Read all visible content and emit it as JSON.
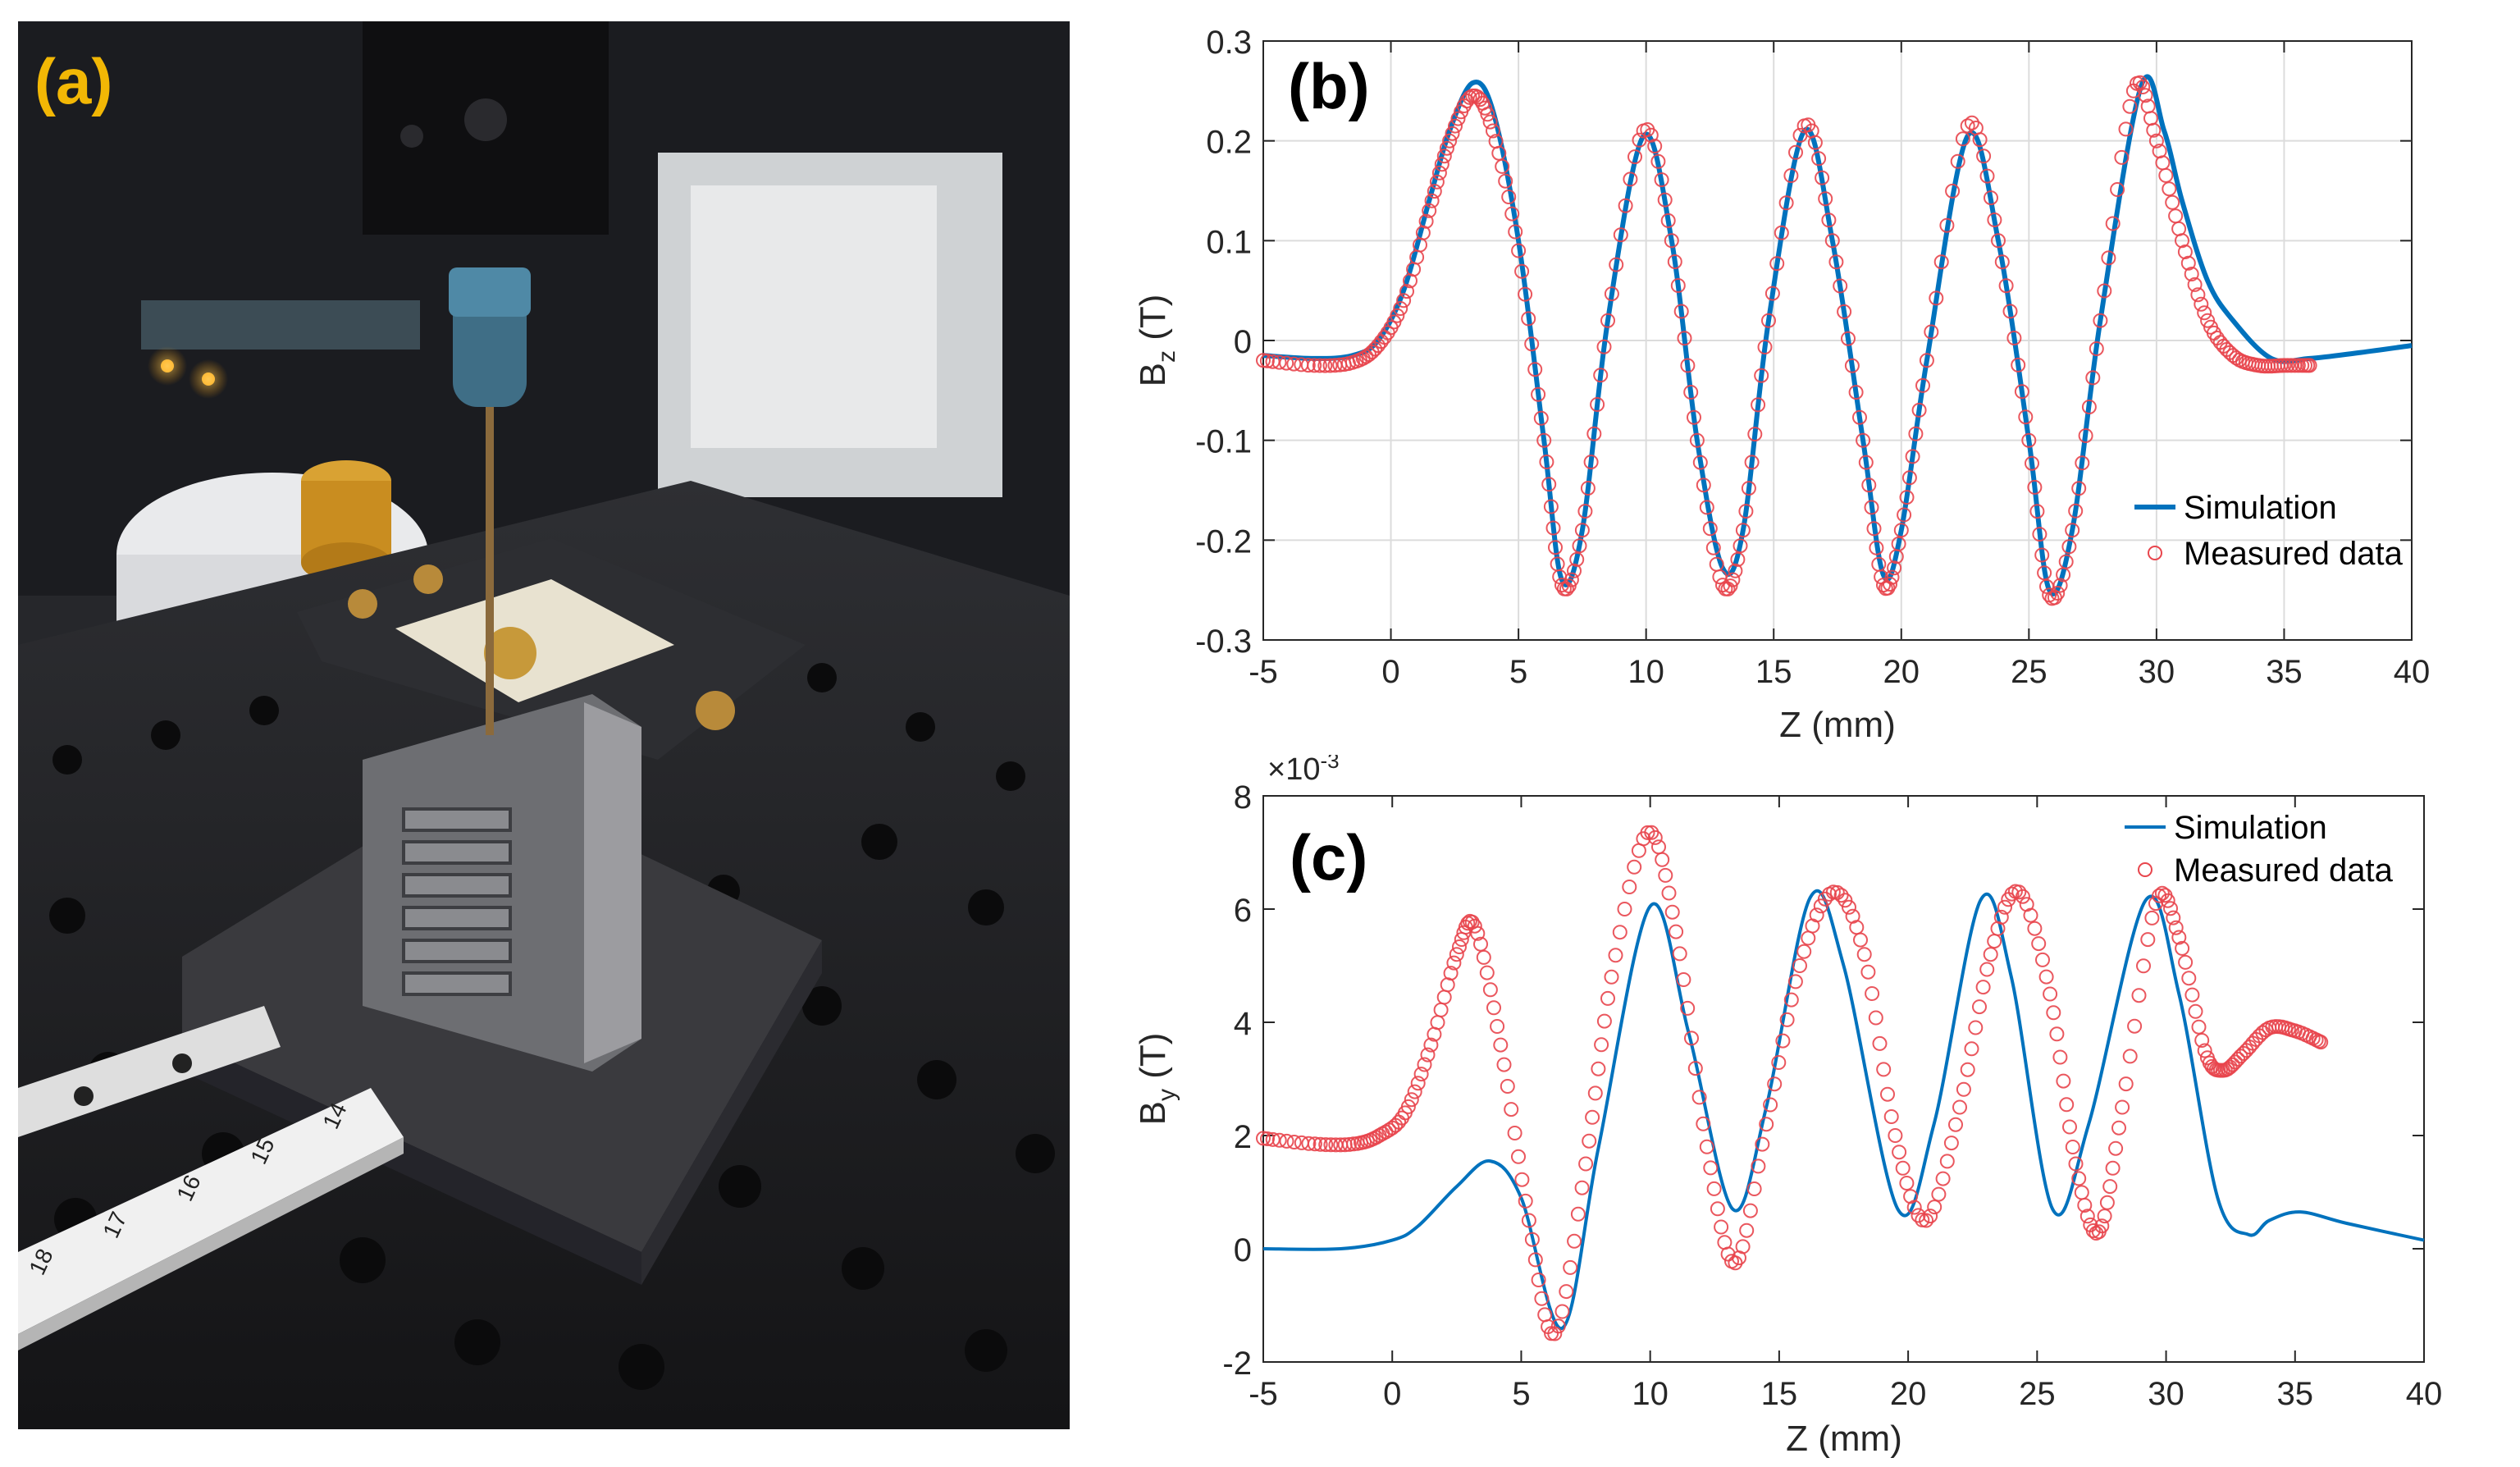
{
  "photo": {
    "label": "(a)",
    "ruler_numbers": [
      "14",
      "15",
      "16",
      "17",
      "18"
    ],
    "description_colors": {
      "label": "#f2b705",
      "table": "#1d1d1f"
    }
  },
  "chart_data": [
    {
      "type": "line",
      "panel_label": "(b)",
      "xlabel": "Z (mm)",
      "ylabel_main": "B",
      "ylabel_sub": "z",
      "ylabel_unit": " (T)",
      "xlim": [
        -5,
        40
      ],
      "ylim": [
        -0.3,
        0.3
      ],
      "xticks": [
        -5,
        0,
        5,
        10,
        15,
        20,
        25,
        30,
        35,
        40
      ],
      "yticks": [
        -0.3,
        -0.2,
        -0.1,
        0,
        0.1,
        0.2,
        0.3
      ],
      "ytick_labels": [
        "-0.3",
        "-0.2",
        "-0.1",
        "0",
        "0.1",
        "0.2",
        "0.3"
      ],
      "grid": true,
      "legend_position": "bottom-right",
      "series": [
        {
          "name": "Simulation",
          "style": "line",
          "color": "#0072bd",
          "x": [
            -5,
            -3,
            -1.5,
            -0.5,
            0.5,
            1.5,
            2.3,
            3.2,
            4,
            5,
            6,
            6.7,
            7.5,
            8.5,
            9.9,
            11,
            12,
            13,
            13.8,
            14.8,
            16.2,
            17.3,
            18.5,
            19.3,
            20,
            21,
            22.6,
            23.8,
            25,
            25.8,
            26.7,
            27.8,
            29.4,
            30.3,
            31,
            32,
            33,
            34.5,
            36,
            38,
            40
          ],
          "y": [
            -0.015,
            -0.018,
            -0.015,
            0,
            0.05,
            0.14,
            0.21,
            0.258,
            0.23,
            0.1,
            -0.1,
            -0.24,
            -0.19,
            0.02,
            0.205,
            0.1,
            -0.1,
            -0.228,
            -0.19,
            0.02,
            0.21,
            0.1,
            -0.1,
            -0.235,
            -0.19,
            -0.02,
            0.205,
            0.1,
            -0.1,
            -0.25,
            -0.19,
            0.02,
            0.255,
            0.21,
            0.14,
            0.06,
            0.02,
            -0.018,
            -0.018,
            -0.012,
            -0.005
          ]
        },
        {
          "name": "Measured data",
          "style": "markers",
          "color": "#e8454c",
          "x": [
            -5,
            -3,
            -1.5,
            -0.5,
            0.5,
            1.5,
            2.3,
            3.2,
            4,
            5,
            6,
            6.7,
            7.5,
            8.5,
            9.9,
            11,
            12,
            13,
            13.8,
            14.8,
            16.2,
            17.3,
            18.5,
            19.3,
            20,
            21,
            22.6,
            23.8,
            25,
            25.8,
            26.7,
            27.8,
            29.1,
            30,
            31,
            32,
            33,
            34,
            35,
            36
          ],
          "y": [
            -0.02,
            -0.025,
            -0.022,
            -0.005,
            0.04,
            0.13,
            0.2,
            0.245,
            0.21,
            0.09,
            -0.1,
            -0.245,
            -0.19,
            0.02,
            0.21,
            0.1,
            -0.1,
            -0.245,
            -0.19,
            0.02,
            0.215,
            0.1,
            -0.1,
            -0.245,
            -0.19,
            -0.02,
            0.215,
            0.1,
            -0.1,
            -0.255,
            -0.19,
            0.02,
            0.25,
            0.2,
            0.1,
            0.02,
            -0.015,
            -0.025,
            -0.025,
            -0.025
          ]
        }
      ]
    },
    {
      "type": "line",
      "panel_label": "(c)",
      "xlabel": "Z (mm)",
      "ylabel_main": "B",
      "ylabel_sub": "y",
      "ylabel_unit": " (T)",
      "exponent_label": "×10",
      "exponent_power": "-3",
      "xlim": [
        -5,
        40
      ],
      "ylim": [
        -2,
        8
      ],
      "xticks": [
        -5,
        0,
        5,
        10,
        15,
        20,
        25,
        30,
        35,
        40
      ],
      "yticks": [
        -2,
        0,
        2,
        4,
        6,
        8
      ],
      "ytick_labels": [
        "-2",
        "0",
        "2",
        "4",
        "6",
        "8"
      ],
      "grid": false,
      "legend_position": "top-right",
      "series": [
        {
          "name": "Simulation",
          "style": "line",
          "color": "#0072bd",
          "x": [
            -5,
            -2,
            0,
            1,
            2.5,
            3.8,
            5,
            6.6,
            8,
            10,
            11.5,
            13.2,
            14.5,
            16.2,
            17.5,
            19.6,
            21,
            22.8,
            24,
            25.6,
            27,
            29.2,
            30.5,
            32,
            33.2,
            34,
            35.2,
            37,
            40
          ],
          "y": [
            0,
            0,
            0.15,
            0.4,
            1.1,
            1.55,
            0.9,
            -1.4,
            1.8,
            6.05,
            3.8,
            0.7,
            2.5,
            6.2,
            5,
            0.7,
            2.2,
            6.15,
            4.8,
            0.7,
            2.2,
            6.15,
            4.5,
            0.9,
            0.25,
            0.5,
            0.65,
            0.45,
            0.15
          ]
        },
        {
          "name": "Measured data",
          "style": "markers",
          "color": "#e8454c",
          "x": [
            -5,
            -3,
            -1.5,
            -0.5,
            0.5,
            1.5,
            2.5,
            3.2,
            4.2,
            5.3,
            6.3,
            7.5,
            8.5,
            9.9,
            11,
            12.2,
            13.3,
            14.5,
            15.8,
            17.1,
            18.3,
            19.5,
            20.7,
            22,
            23.2,
            24.3,
            25.5,
            26.5,
            27.4,
            28.3,
            29.6,
            30.5,
            31.5,
            32.2,
            33,
            34,
            35,
            36
          ],
          "y": [
            1.95,
            1.85,
            1.85,
            2,
            2.4,
            3.6,
            5.2,
            5.7,
            3.6,
            0.5,
            -1.5,
            1.5,
            4.8,
            7.35,
            5.6,
            1.8,
            -0.25,
            2.2,
            5,
            6.3,
            5.2,
            2,
            0.5,
            2.5,
            5.2,
            6.3,
            4.5,
            1.5,
            0.3,
            2.5,
            6.1,
            5.5,
            3.5,
            3.15,
            3.45,
            3.9,
            3.85,
            3.65
          ]
        }
      ]
    }
  ]
}
